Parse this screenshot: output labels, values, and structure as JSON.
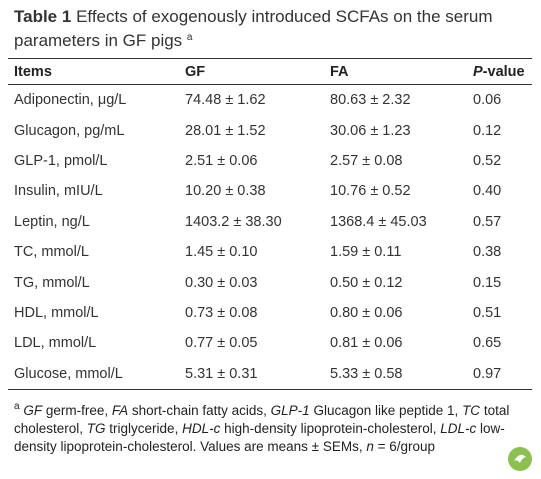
{
  "title": {
    "label": "Table 1",
    "text": "Effects of exogenously introduced SCFAs on the serum parameters in GF pigs",
    "note": "a"
  },
  "table": {
    "columns": [
      "Items",
      "GF",
      "FA"
    ],
    "pvalue_header": {
      "italic": "P",
      "rest": "-value"
    },
    "rows": [
      [
        "Adiponectin, μg/L",
        "74.48 ± 1.62",
        "80.63 ± 2.32",
        "0.06"
      ],
      [
        "Glucagon, pg/mL",
        "28.01 ± 1.52",
        "30.06 ± 1.23",
        "0.12"
      ],
      [
        "GLP-1, pmol/L",
        "2.51 ± 0.06",
        "2.57 ± 0.08",
        "0.52"
      ],
      [
        "Insulin, mIU/L",
        "10.20 ± 0.38",
        "10.76 ± 0.52",
        "0.40"
      ],
      [
        "Leptin, ng/L",
        "1403.2 ± 38.30",
        "1368.4 ± 45.03",
        "0.57"
      ],
      [
        "TC, mmol/L",
        "1.45 ± 0.10",
        "1.59 ± 0.11",
        "0.38"
      ],
      [
        "TG, mmol/L",
        "0.30 ± 0.03",
        "0.50 ± 0.12",
        "0.15"
      ],
      [
        "HDL, mmol/L",
        "0.73 ± 0.08",
        "0.80 ± 0.06",
        "0.51"
      ],
      [
        "LDL, mmol/L",
        "0.77 ± 0.05",
        "0.81 ± 0.06",
        "0.65"
      ],
      [
        "Glucose, mmol/L",
        "5.31 ± 0.31",
        "5.33 ± 0.58",
        "0.97"
      ]
    ]
  },
  "footnote": {
    "mark": "a",
    "segments": [
      {
        "text": "GF",
        "italic": true
      },
      {
        "text": " germ-free, ",
        "italic": false
      },
      {
        "text": "FA",
        "italic": true
      },
      {
        "text": " short-chain fatty acids, ",
        "italic": false
      },
      {
        "text": "GLP-1",
        "italic": true
      },
      {
        "text": " Glucagon like peptide 1, ",
        "italic": false
      },
      {
        "text": "TC",
        "italic": true
      },
      {
        "text": " total cholesterol, ",
        "italic": false
      },
      {
        "text": "TG",
        "italic": true
      },
      {
        "text": " triglyceride, ",
        "italic": false
      },
      {
        "text": "HDL-c",
        "italic": true
      },
      {
        "text": " high-density lipoprotein-cholesterol, ",
        "italic": false
      },
      {
        "text": "LDL-c",
        "italic": true
      },
      {
        "text": " low-density lipoprotein-cholesterol. Values are means ± SEMs, ",
        "italic": false
      },
      {
        "text": "n",
        "italic": true
      },
      {
        "text": " = 6/group",
        "italic": false
      }
    ]
  }
}
